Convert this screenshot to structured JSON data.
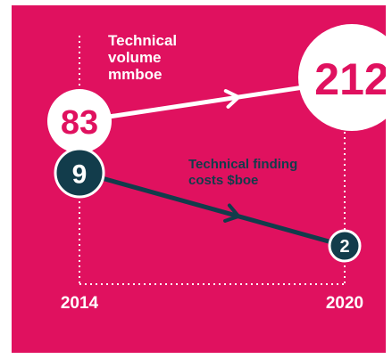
{
  "chart_data": {
    "type": "line",
    "x": [
      "2014",
      "2020"
    ],
    "series": [
      {
        "name": "Technical volume mmboe",
        "values": [
          83,
          212
        ],
        "label_lines": [
          "Technical",
          "volume",
          "mmboe"
        ]
      },
      {
        "name": "Technical finding costs $boe",
        "values": [
          9,
          2
        ],
        "label_lines": [
          "Technical finding",
          "costs $boe"
        ]
      }
    ],
    "data_labels": [
      {
        "series": 0,
        "point": 0,
        "text": "83"
      },
      {
        "series": 0,
        "point": 1,
        "text": "212"
      },
      {
        "series": 1,
        "point": 0,
        "text": "9"
      },
      {
        "series": 1,
        "point": 1,
        "text": "2"
      }
    ],
    "grid": false,
    "legend": "inline-labels"
  },
  "colors": {
    "background": "#e0115f",
    "volume_line": "#ffffff",
    "volume_label": "#ffffff",
    "volume_marker_text": "#e0115f",
    "cost_line": "#123c4b",
    "cost_label": "#123c4b",
    "cost_marker_text": "#ffffff",
    "axis_text": "#ffffff",
    "guide": "#ffffff"
  }
}
